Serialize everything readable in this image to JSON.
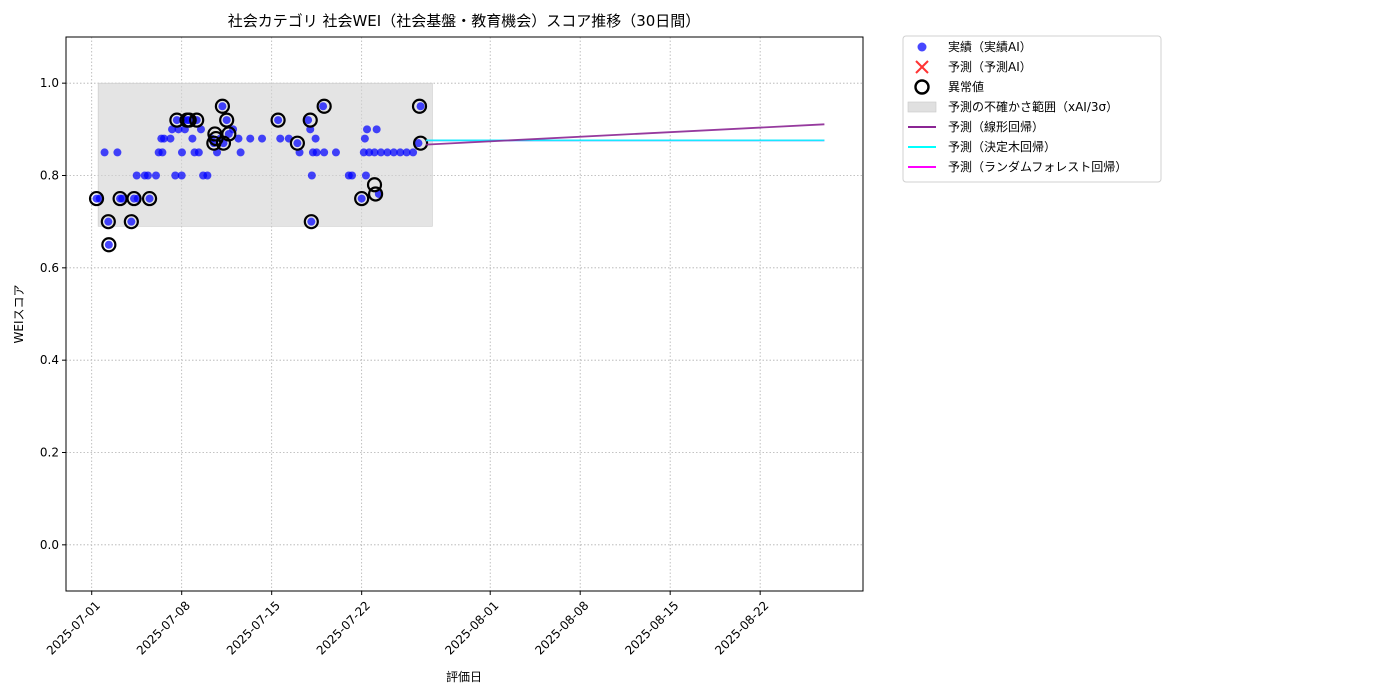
{
  "chart_data": {
    "type": "scatter",
    "title": "社会カテゴリ 社会WEI（社会基盤・教育機会）スコア推移（30日間）",
    "xlabel": "評価日",
    "ylabel": "WEIスコア",
    "xlim": [
      "2025-06-29",
      "2025-08-30"
    ],
    "ylim": [
      -0.1,
      1.1
    ],
    "x_ticks": [
      "2025-07-01",
      "2025-07-08",
      "2025-07-15",
      "2025-07-22",
      "2025-08-01",
      "2025-08-08",
      "2025-08-15",
      "2025-08-22"
    ],
    "y_ticks": [
      0.0,
      0.2,
      0.4,
      0.6,
      0.8,
      1.0
    ],
    "y_tick_labels": [
      "0.0",
      "0.2",
      "0.4",
      "0.6",
      "0.8",
      "1.0"
    ],
    "grid": true,
    "legend_position": "outside-right",
    "colors": {
      "actual": "#0000ff",
      "predicted": "#ff3333",
      "anomaly": "#000000",
      "band": "#d3d3d3",
      "linear": "#8b2594",
      "tree": "#00ffff",
      "forest": "#ff00ff"
    },
    "legend": [
      {
        "label": "実績（実績AI）",
        "kind": "dot",
        "color": "#0000ff"
      },
      {
        "label": "予測（予測AI）",
        "kind": "cross",
        "color": "#ff3333"
      },
      {
        "label": "異常値",
        "kind": "ring",
        "color": "#000000"
      },
      {
        "label": "予測の不確かさ範囲（xAI/3σ）",
        "kind": "band",
        "color": "#d3d3d3"
      },
      {
        "label": "予測（線形回帰）",
        "kind": "line",
        "color": "#8b2594"
      },
      {
        "label": "予測（決定木回帰）",
        "kind": "line",
        "color": "#00ffff"
      },
      {
        "label": "予測（ランダムフォレスト回帰）",
        "kind": "line",
        "color": "#ff00ff"
      }
    ],
    "uncertainty_band": {
      "x_start": "2025-07-01 12:00",
      "x_end": "2025-07-27 12:00",
      "y_low": 0.69,
      "y_high": 1.0
    },
    "actual": [
      [
        "2025-07-01 09:00",
        0.75
      ],
      [
        "2025-07-01 15:00",
        0.75
      ],
      [
        "2025-07-02 00:00",
        0.85
      ],
      [
        "2025-07-02 07:00",
        0.7
      ],
      [
        "2025-07-02 08:00",
        0.65
      ],
      [
        "2025-07-03 00:00",
        0.85
      ],
      [
        "2025-07-03 05:00",
        0.75
      ],
      [
        "2025-07-03 09:00",
        0.75
      ],
      [
        "2025-07-04 02:00",
        0.7
      ],
      [
        "2025-07-04 07:00",
        0.75
      ],
      [
        "2025-07-04 12:00",
        0.8
      ],
      [
        "2025-07-04 14:00",
        0.75
      ],
      [
        "2025-07-05 03:00",
        0.8
      ],
      [
        "2025-07-05 09:00",
        0.8
      ],
      [
        "2025-07-05 12:00",
        0.75
      ],
      [
        "2025-07-06 00:00",
        0.8
      ],
      [
        "2025-07-06 05:00",
        0.85
      ],
      [
        "2025-07-06 10:00",
        0.88
      ],
      [
        "2025-07-06 12:00",
        0.85
      ],
      [
        "2025-07-06 15:00",
        0.88
      ],
      [
        "2025-07-07 03:00",
        0.88
      ],
      [
        "2025-07-07 06:00",
        0.9
      ],
      [
        "2025-07-07 12:00",
        0.8
      ],
      [
        "2025-07-07 15:00",
        0.92
      ],
      [
        "2025-07-07 18:00",
        0.9
      ],
      [
        "2025-07-08 00:00",
        0.8
      ],
      [
        "2025-07-08 00:30",
        0.85
      ],
      [
        "2025-07-08 03:00",
        0.92
      ],
      [
        "2025-07-08 06:00",
        0.9
      ],
      [
        "2025-07-08 10:00",
        0.92
      ],
      [
        "2025-07-08 14:00",
        0.92
      ],
      [
        "2025-07-08 20:00",
        0.88
      ],
      [
        "2025-07-09 00:00",
        0.85
      ],
      [
        "2025-07-09 04:00",
        0.92
      ],
      [
        "2025-07-09 08:00",
        0.85
      ],
      [
        "2025-07-09 12:00",
        0.9
      ],
      [
        "2025-07-09 16:00",
        0.8
      ],
      [
        "2025-07-10 00:00",
        0.8
      ],
      [
        "2025-07-10 08:00",
        0.88
      ],
      [
        "2025-07-10 12:00",
        0.87
      ],
      [
        "2025-07-10 18:00",
        0.85
      ],
      [
        "2025-07-11 00:00",
        0.88
      ],
      [
        "2025-07-11 04:00",
        0.95
      ],
      [
        "2025-07-11 06:00",
        0.87
      ],
      [
        "2025-07-11 12:00",
        0.92
      ],
      [
        "2025-07-11 16:00",
        0.89
      ],
      [
        "2025-07-12 00:00",
        0.9
      ],
      [
        "2025-07-12 10:00",
        0.88
      ],
      [
        "2025-07-12 14:00",
        0.85
      ],
      [
        "2025-07-13 08:00",
        0.88
      ],
      [
        "2025-07-14 06:00",
        0.88
      ],
      [
        "2025-07-15 12:00",
        0.92
      ],
      [
        "2025-07-15 16:00",
        0.88
      ],
      [
        "2025-07-16 08:00",
        0.88
      ],
      [
        "2025-07-17 00:00",
        0.87
      ],
      [
        "2025-07-17 04:00",
        0.85
      ],
      [
        "2025-07-17 20:00",
        0.92
      ],
      [
        "2025-07-18 00:00",
        0.9
      ],
      [
        "2025-07-18 02:00",
        0.7
      ],
      [
        "2025-07-18 03:00",
        0.8
      ],
      [
        "2025-07-18 05:00",
        0.85
      ],
      [
        "2025-07-18 10:00",
        0.88
      ],
      [
        "2025-07-18 12:00",
        0.85
      ],
      [
        "2025-07-19 00:00",
        0.95
      ],
      [
        "2025-07-19 02:00",
        0.85
      ],
      [
        "2025-07-20 00:00",
        0.85
      ],
      [
        "2025-07-21 00:00",
        0.8
      ],
      [
        "2025-07-21 06:00",
        0.8
      ],
      [
        "2025-07-22 00:00",
        0.75
      ],
      [
        "2025-07-22 04:00",
        0.85
      ],
      [
        "2025-07-22 06:00",
        0.88
      ],
      [
        "2025-07-22 08:00",
        0.8
      ],
      [
        "2025-07-22 10:00",
        0.9
      ],
      [
        "2025-07-22 14:00",
        0.85
      ],
      [
        "2025-07-23 00:00",
        0.85
      ],
      [
        "2025-07-23 04:00",
        0.9
      ],
      [
        "2025-07-23 08:00",
        0.76
      ],
      [
        "2025-07-23 12:00",
        0.85
      ],
      [
        "2025-07-24 00:00",
        0.85
      ],
      [
        "2025-07-24 12:00",
        0.85
      ],
      [
        "2025-07-25 00:00",
        0.85
      ],
      [
        "2025-07-25 12:00",
        0.85
      ],
      [
        "2025-07-26 00:00",
        0.85
      ],
      [
        "2025-07-26 10:00",
        0.87
      ],
      [
        "2025-07-26 14:00",
        0.95
      ]
    ],
    "anomalies": [
      [
        "2025-07-01 09:00",
        0.75
      ],
      [
        "2025-07-02 07:00",
        0.7
      ],
      [
        "2025-07-02 08:00",
        0.65
      ],
      [
        "2025-07-03 05:00",
        0.75
      ],
      [
        "2025-07-04 02:00",
        0.7
      ],
      [
        "2025-07-04 07:00",
        0.75
      ],
      [
        "2025-07-05 12:00",
        0.75
      ],
      [
        "2025-07-07 15:00",
        0.92
      ],
      [
        "2025-07-08 10:00",
        0.92
      ],
      [
        "2025-07-08 14:00",
        0.92
      ],
      [
        "2025-07-09 04:00",
        0.92
      ],
      [
        "2025-07-10 12:00",
        0.87
      ],
      [
        "2025-07-10 14:00",
        0.89
      ],
      [
        "2025-07-10 16:00",
        0.88
      ],
      [
        "2025-07-11 04:00",
        0.95
      ],
      [
        "2025-07-11 06:00",
        0.87
      ],
      [
        "2025-07-11 12:00",
        0.92
      ],
      [
        "2025-07-11 16:00",
        0.89
      ],
      [
        "2025-07-15 12:00",
        0.92
      ],
      [
        "2025-07-17 00:00",
        0.87
      ],
      [
        "2025-07-18 00:00",
        0.92
      ],
      [
        "2025-07-18 02:00",
        0.7
      ],
      [
        "2025-07-19 02:00",
        0.95
      ],
      [
        "2025-07-22 00:00",
        0.75
      ],
      [
        "2025-07-23 00:00",
        0.78
      ],
      [
        "2025-07-23 02:00",
        0.76
      ],
      [
        "2025-07-26 12:00",
        0.95
      ],
      [
        "2025-07-26 14:00",
        0.87
      ]
    ],
    "lines": [
      {
        "key": "forest",
        "points": [
          [
            "2025-07-27 00:00",
            0.876
          ],
          [
            "2025-08-27 00:00",
            0.876
          ]
        ]
      },
      {
        "key": "tree",
        "points": [
          [
            "2025-07-27 00:00",
            0.876
          ],
          [
            "2025-08-27 00:00",
            0.876
          ]
        ]
      },
      {
        "key": "linear",
        "points": [
          [
            "2025-07-27 00:00",
            0.867
          ],
          [
            "2025-08-27 00:00",
            0.911
          ]
        ]
      }
    ]
  }
}
